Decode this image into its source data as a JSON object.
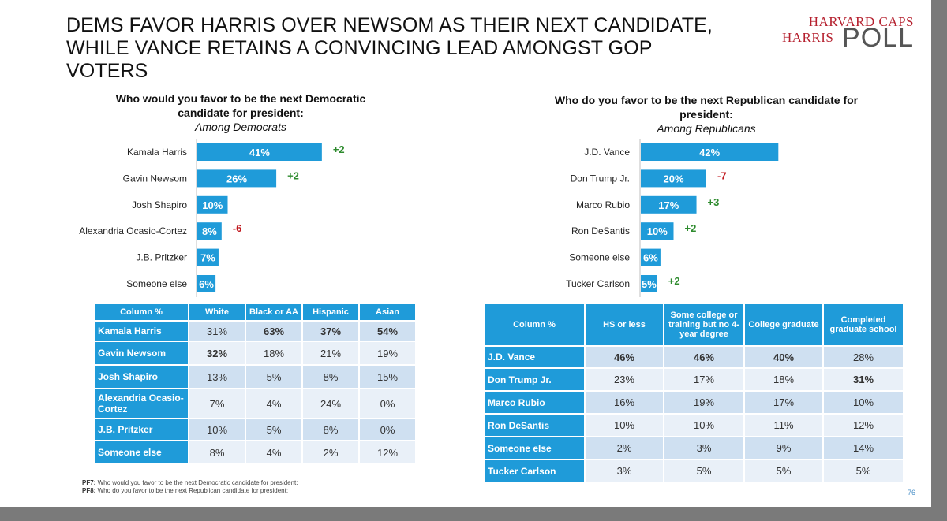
{
  "title_line1": "DEMS FAVOR HARRIS OVER NEWSOM AS THEIR NEXT CANDIDATE,",
  "title_line2": "WHILE VANCE RETAINS A CONVINCING LEAD AMONGST GOP VOTERS",
  "logo": {
    "line1": "HARVARD CAPS",
    "line2": "HARRIS",
    "line3": "POLL"
  },
  "colors": {
    "bar": "#1f9bd9",
    "positive": "#2e8b2e",
    "negative": "#c0181e"
  },
  "dem_question": {
    "line1": "Who would you favor to be the next Democratic",
    "line2": "candidate for president:",
    "sub": "Among Democrats"
  },
  "rep_question": {
    "line1": "Who do you favor to be the next Republican candidate for",
    "line2": "president:",
    "sub": "Among Republicans"
  },
  "chart_data": [
    {
      "type": "bar",
      "orientation": "horizontal",
      "title": "Who would you favor to be the next Democratic candidate for president: Among Democrats",
      "categories": [
        "Kamala Harris",
        "Gavin Newsom",
        "Josh Shapiro",
        "Alexandria Ocasio-Cortez",
        "J.B. Pritzker",
        "Someone else"
      ],
      "values": [
        41,
        26,
        10,
        8,
        7,
        6
      ],
      "value_labels": [
        "41%",
        "26%",
        "10%",
        "8%",
        "7%",
        "6%"
      ],
      "changes": [
        "+2",
        "+2",
        "",
        "-6",
        "",
        ""
      ]
    },
    {
      "type": "bar",
      "orientation": "horizontal",
      "title": "Who do you favor to be the next Republican candidate for president: Among Republicans",
      "categories": [
        "J.D. Vance",
        "Don Trump Jr.",
        "Marco Rubio",
        "Ron DeSantis",
        "Someone else",
        "Tucker Carlson"
      ],
      "values": [
        42,
        20,
        17,
        10,
        6,
        5
      ],
      "value_labels": [
        "42%",
        "20%",
        "17%",
        "10%",
        "6%",
        "5%"
      ],
      "changes": [
        "",
        "-7",
        "+3",
        "+2",
        "",
        "+2"
      ]
    }
  ],
  "dem_table": {
    "headers": [
      "Column %",
      "White",
      "Black or AA",
      "Hispanic",
      "Asian"
    ],
    "rows": [
      {
        "label": "Kamala Harris",
        "cells": [
          "31%",
          "63%",
          "37%",
          "54%"
        ],
        "bold": [
          false,
          true,
          true,
          true
        ]
      },
      {
        "label": "Gavin Newsom",
        "cells": [
          "32%",
          "18%",
          "21%",
          "19%"
        ],
        "bold": [
          true,
          false,
          false,
          false
        ]
      },
      {
        "label": "Josh Shapiro",
        "cells": [
          "13%",
          "5%",
          "8%",
          "15%"
        ],
        "bold": [
          false,
          false,
          false,
          false
        ]
      },
      {
        "label": "Alexandria Ocasio-Cortez",
        "cells": [
          "7%",
          "4%",
          "24%",
          "0%"
        ],
        "bold": [
          false,
          false,
          false,
          false
        ]
      },
      {
        "label": "J.B. Pritzker",
        "cells": [
          "10%",
          "5%",
          "8%",
          "0%"
        ],
        "bold": [
          false,
          false,
          false,
          false
        ]
      },
      {
        "label": "Someone else",
        "cells": [
          "8%",
          "4%",
          "2%",
          "12%"
        ],
        "bold": [
          false,
          false,
          false,
          false
        ]
      }
    ]
  },
  "rep_table": {
    "headers": [
      "Column %",
      "HS or less",
      "Some college or training but no 4-year degree",
      "College graduate",
      "Completed graduate school"
    ],
    "rows": [
      {
        "label": "J.D. Vance",
        "cells": [
          "46%",
          "46%",
          "40%",
          "28%"
        ],
        "bold": [
          true,
          true,
          true,
          false
        ]
      },
      {
        "label": "Don Trump Jr.",
        "cells": [
          "23%",
          "17%",
          "18%",
          "31%"
        ],
        "bold": [
          false,
          false,
          false,
          true
        ]
      },
      {
        "label": "Marco Rubio",
        "cells": [
          "16%",
          "19%",
          "17%",
          "10%"
        ],
        "bold": [
          false,
          false,
          false,
          false
        ]
      },
      {
        "label": "Ron DeSantis",
        "cells": [
          "10%",
          "10%",
          "11%",
          "12%"
        ],
        "bold": [
          false,
          false,
          false,
          false
        ]
      },
      {
        "label": "Someone else",
        "cells": [
          "2%",
          "3%",
          "9%",
          "14%"
        ],
        "bold": [
          false,
          false,
          false,
          false
        ]
      },
      {
        "label": "Tucker Carlson",
        "cells": [
          "3%",
          "5%",
          "5%",
          "5%"
        ],
        "bold": [
          false,
          false,
          false,
          false
        ]
      }
    ]
  },
  "footnotes": [
    {
      "code": "PF7:",
      "text": "Who would you favor to be the next Democratic candidate for president:"
    },
    {
      "code": "PF8:",
      "text": "Who do you favor to be the next Republican candidate for president:"
    }
  ],
  "page_number": "76"
}
